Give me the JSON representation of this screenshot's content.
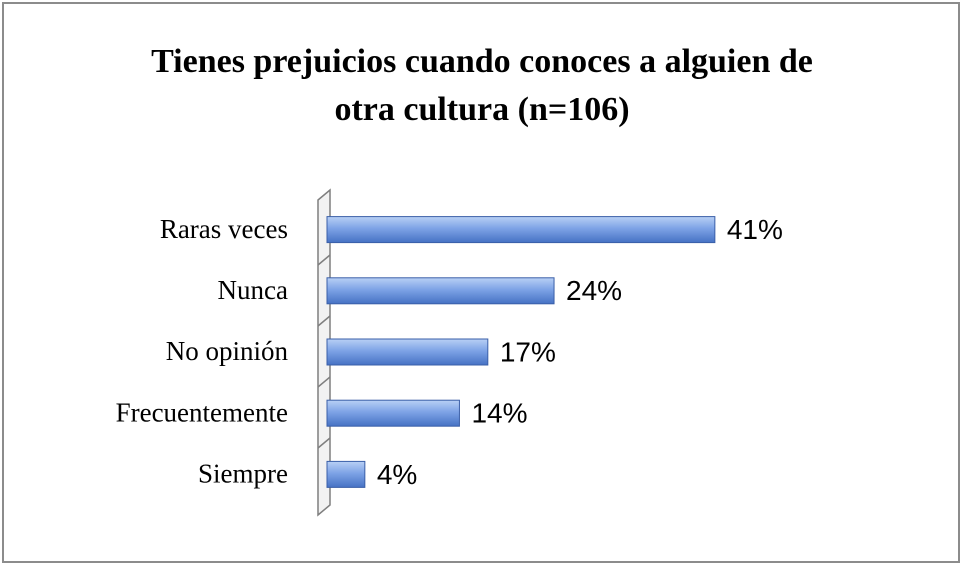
{
  "chart_data": {
    "type": "bar",
    "orientation": "horizontal",
    "title": "Tienes prejuicios cuando conoces a alguien de otra cultura (n=106)",
    "categories": [
      "Raras veces",
      "Nunca",
      "No opinión",
      "Frecuentemente",
      "Siempre"
    ],
    "values": [
      41,
      24,
      17,
      14,
      4
    ],
    "value_labels": [
      "41%",
      "24%",
      "17%",
      "14%",
      "4%"
    ],
    "color": "#4f81d0"
  }
}
